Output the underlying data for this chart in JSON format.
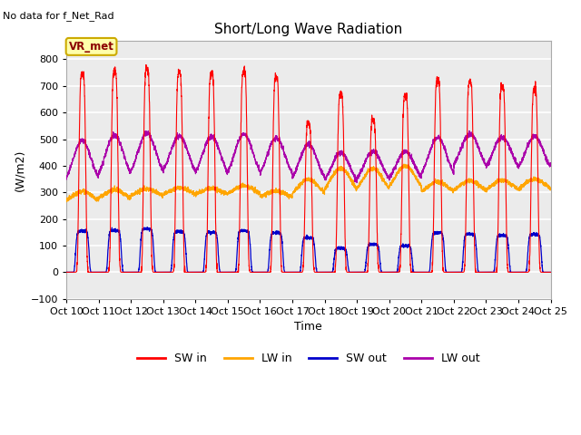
{
  "title": "Short/Long Wave Radiation",
  "xlabel": "Time",
  "ylabel": "(W/m2)",
  "ylim": [
    -100,
    870
  ],
  "yticks": [
    -100,
    0,
    100,
    200,
    300,
    400,
    500,
    600,
    700,
    800
  ],
  "no_data_text": "No data for f_Net_Rad",
  "vr_met_label": "VR_met",
  "x_tick_labels": [
    "Oct 10",
    "Oct 11",
    "Oct 12",
    "Oct 13",
    "Oct 14",
    "Oct 15",
    "Oct 16",
    "Oct 17",
    "Oct 18",
    "Oct 19",
    "Oct 20",
    "Oct 21",
    "Oct 22",
    "Oct 23",
    "Oct 24",
    "Oct 25"
  ],
  "colors": {
    "SW_in": "#ff0000",
    "LW_in": "#ffa500",
    "SW_out": "#0000cc",
    "LW_out": "#aa00aa"
  },
  "legend_labels": [
    "SW in",
    "LW in",
    "SW out",
    "LW out"
  ],
  "plot_bg": "#ebebeb",
  "n_days": 15,
  "pts_per_day": 288,
  "SW_in_peaks": [
    750,
    755,
    762,
    750,
    748,
    755,
    735,
    560,
    670,
    575,
    665,
    720,
    715,
    700,
    688
  ],
  "LW_in_base": [
    255,
    265,
    278,
    282,
    285,
    285,
    275,
    275,
    280,
    285,
    290,
    290,
    295,
    298,
    300
  ],
  "LW_in_peak_extra": [
    50,
    45,
    35,
    35,
    30,
    40,
    30,
    75,
    110,
    105,
    110,
    50,
    48,
    48,
    50
  ],
  "SW_out_peaks": [
    155,
    157,
    163,
    153,
    150,
    155,
    148,
    130,
    90,
    105,
    100,
    148,
    143,
    138,
    142
  ],
  "LW_out_base": [
    320,
    335,
    345,
    350,
    342,
    342,
    338,
    325,
    320,
    325,
    330,
    340,
    375,
    370,
    365
  ],
  "LW_out_peak_extra": [
    175,
    180,
    178,
    162,
    168,
    178,
    167,
    155,
    130,
    130,
    125,
    165,
    145,
    138,
    145
  ]
}
